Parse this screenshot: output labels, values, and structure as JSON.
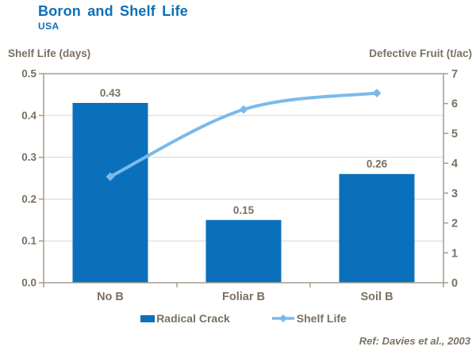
{
  "footer": {
    "reference": "Ref: Davies et al., 2003"
  },
  "colors": {
    "title": "#0C6FB8",
    "bar": "#0A70BC",
    "line": "#7ABAEB",
    "text": "#7B7061",
    "grid": "#D8D5CF",
    "axis": "#A59C8D",
    "background": "#FFFFFF"
  },
  "chart_data": {
    "type": "bar",
    "subtype": "combo-bar-line-dual-axis",
    "title": "Boron and Shelf Life",
    "subtitle": "USA",
    "categories": [
      "No B",
      "Foliar B",
      "Soil B"
    ],
    "series": [
      {
        "name": "Radical Crack",
        "kind": "bar",
        "axis": "left",
        "values": [
          0.43,
          0.15,
          0.26
        ],
        "data_labels": [
          "0.43",
          "0.15",
          "0.26"
        ],
        "color": "#0A70BC"
      },
      {
        "name": "Shelf Life",
        "kind": "line",
        "axis": "right",
        "values": [
          3.55,
          5.8,
          6.35
        ],
        "marker": "diamond",
        "color": "#7ABAEB"
      }
    ],
    "left_axis": {
      "label": "Shelf Life (days)",
      "min": 0,
      "max": 0.5,
      "step": 0.1,
      "ticks": [
        "0.0",
        "0.1",
        "0.2",
        "0.3",
        "0.4",
        "0.5"
      ]
    },
    "right_axis": {
      "label": "Defective Fruit (t/ac)",
      "min": 0,
      "max": 7,
      "step": 1,
      "ticks": [
        "0",
        "1",
        "2",
        "3",
        "4",
        "5",
        "6",
        "7"
      ]
    },
    "grid": true,
    "legend_position": "bottom",
    "annotation": "Ref: Davies et al., 2003"
  }
}
